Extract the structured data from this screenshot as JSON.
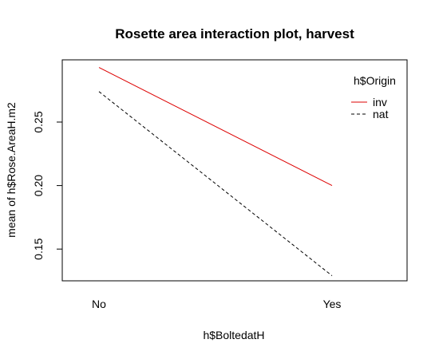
{
  "chart_data": {
    "type": "line",
    "title": "Rosette area interaction plot, harvest",
    "xlabel": "h$BoltedatH",
    "ylabel": "mean of  h$Rose.AreaH.m2",
    "categories": [
      "No",
      "Yes"
    ],
    "yticks": [
      "0.15",
      "0.20",
      "0.25"
    ],
    "ylim": [
      0.125,
      0.299
    ],
    "legend_title": "h$Origin",
    "legend_placement": "top-right",
    "grid": false,
    "series": [
      {
        "name": "inv",
        "values": [
          0.293,
          0.2
        ],
        "color": "#dd0000",
        "dash": "solid"
      },
      {
        "name": "nat",
        "values": [
          0.274,
          0.129
        ],
        "color": "#000000",
        "dash": "dashed"
      }
    ]
  }
}
